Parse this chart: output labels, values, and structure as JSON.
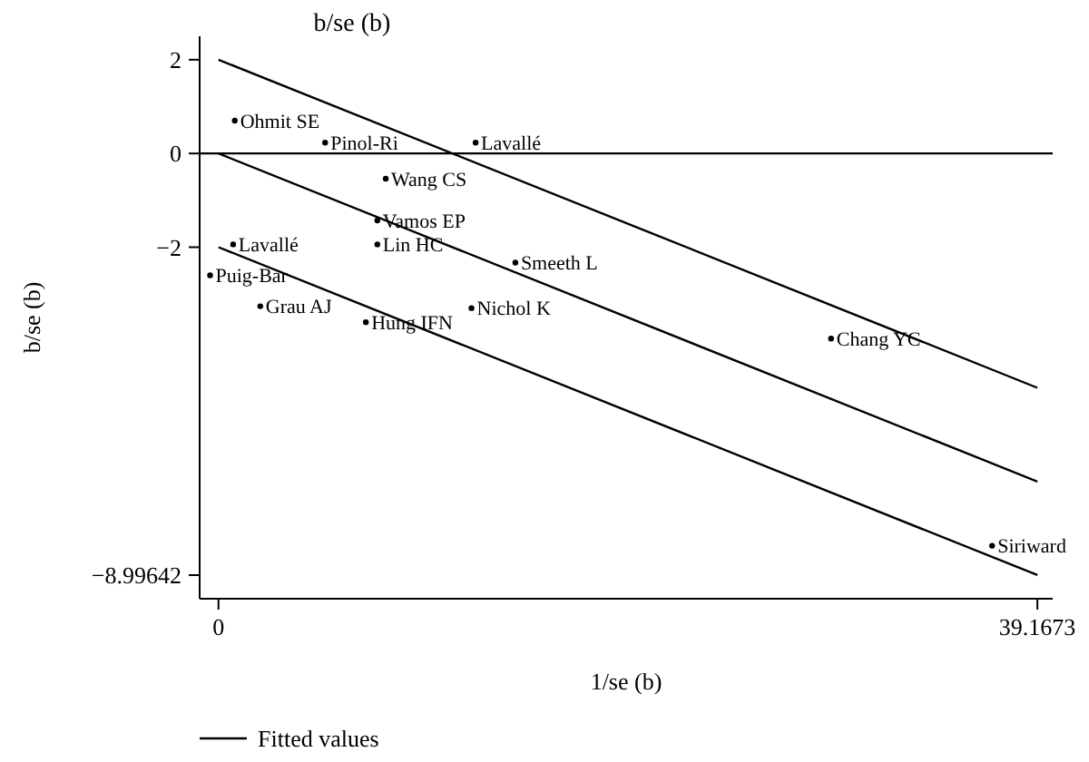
{
  "chart_data": {
    "type": "scatter",
    "title": "b/se (b)",
    "xlabel": "1/se (b)",
    "ylabel": "b/se (b)",
    "xlim": [
      -0.9,
      39.9
    ],
    "ylim": [
      -9.5,
      2.5
    ],
    "xticks": [
      0,
      39.1673
    ],
    "yticks": [
      2,
      0,
      {
        "value": -2,
        "label": "−2"
      },
      {
        "value": -8.99642,
        "label": "−8.99642"
      }
    ],
    "series": [
      {
        "marker": "circle",
        "color": "#000000",
        "x": [
          0.78,
          5.1,
          12.3,
          8.0,
          7.6,
          7.6,
          14.2,
          0.7,
          -0.4,
          2.0,
          7.05,
          12.1,
          29.3,
          37.0
        ],
        "values": [
          0.7,
          0.23,
          0.23,
          -0.54,
          -1.43,
          -1.94,
          -2.33,
          -1.94,
          -2.6,
          -3.26,
          -3.6,
          -3.3,
          -3.95,
          -8.37
        ],
        "value_labels": [
          "Ohmit SE",
          "Pinol-Ri",
          "Lavallé",
          "Wang CS",
          "Vamos EP",
          "Lin HC",
          "Smeeth L",
          "Lavallé",
          "Puig-Bar",
          "Grau AJ",
          "Hung IFN",
          "Nichol K",
          "Chang YC",
          "Siriward"
        ]
      },
      {
        "type": "line",
        "name": "Fitted values",
        "color": "#000000",
        "x": [
          0,
          39.1673
        ],
        "values": [
          0,
          -7.0
        ]
      },
      {
        "type": "line",
        "color": "#000000",
        "x": [
          0,
          39.1673
        ],
        "values": [
          2,
          -5.0
        ]
      },
      {
        "type": "line",
        "color": "#000000",
        "x": [
          0,
          39.1673
        ],
        "values": [
          -2,
          -8.99642
        ]
      }
    ],
    "ref_lines": [
      {
        "axis": "y",
        "value": 0,
        "color": "#000000"
      }
    ],
    "legend": "bottom",
    "grid": false
  }
}
